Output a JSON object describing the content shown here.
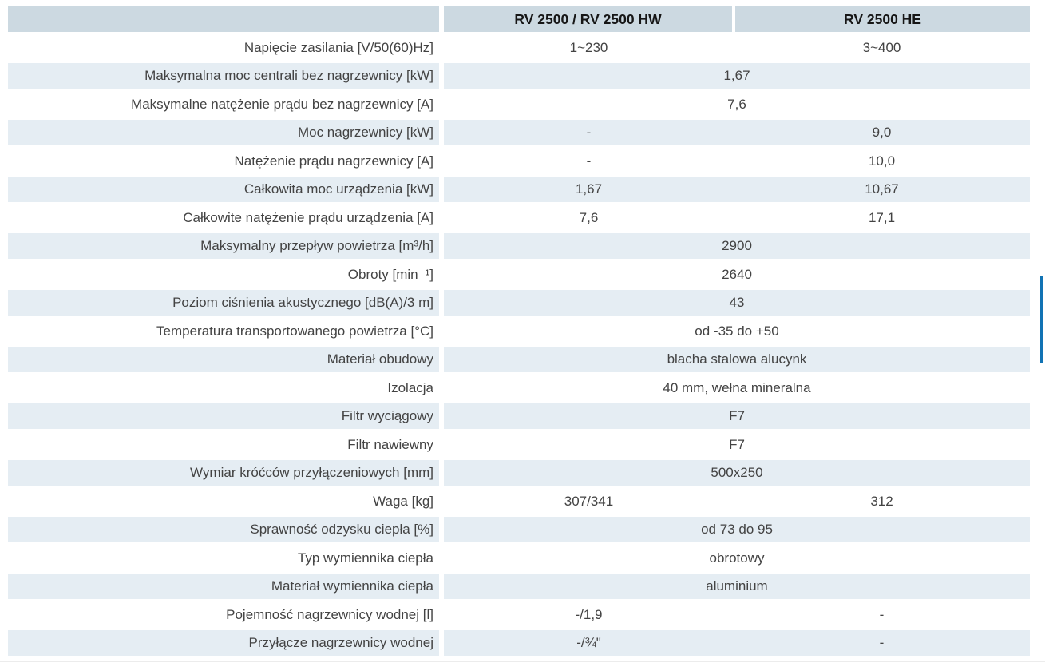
{
  "table": {
    "columns": [
      "RV 2500 / RV 2500 HW",
      "RV 2500 HE"
    ],
    "rows": [
      {
        "label": "Napięcie zasilania [V/50(60)Hz]",
        "v1": "1~230",
        "v2": "3~400"
      },
      {
        "label": "Maksymalna moc centrali bez nagrzewnicy [kW]",
        "merged": "1,67"
      },
      {
        "label": "Maksymalne natężenie prądu bez nagrzewnicy [A]",
        "merged": "7,6"
      },
      {
        "label": "Moc nagrzewnicy [kW]",
        "v1": "-",
        "v2": "9,0"
      },
      {
        "label": "Natężenie prądu nagrzewnicy [A]",
        "v1": "-",
        "v2": "10,0"
      },
      {
        "label": "Całkowita moc urządzenia [kW]",
        "v1": "1,67",
        "v2": "10,67"
      },
      {
        "label": "Całkowite natężenie prądu urządzenia [A]",
        "v1": "7,6",
        "v2": "17,1"
      },
      {
        "label": "Maksymalny przepływ powietrza [m³/h]",
        "merged": "2900"
      },
      {
        "label": "Obroty [min⁻¹]",
        "merged": "2640"
      },
      {
        "label": "Poziom ciśnienia akustycznego [dB(A)/3 m]",
        "merged": "43"
      },
      {
        "label": "Temperatura transportowanego powietrza [°C]",
        "merged": "od -35 do +50"
      },
      {
        "label": "Materiał obudowy",
        "merged": "blacha stalowa alucynk"
      },
      {
        "label": "Izolacja",
        "merged": "40 mm, wełna mineralna"
      },
      {
        "label": "Filtr wyciągowy",
        "merged": "F7"
      },
      {
        "label": "Filtr nawiewny",
        "merged": "F7"
      },
      {
        "label": "Wymiar króćców przyłączeniowych [mm]",
        "merged": "500x250"
      },
      {
        "label": "Waga [kg]",
        "v1": "307/341",
        "v2": "312"
      },
      {
        "label": "Sprawność odzysku ciepła [%]",
        "merged": "od 73 do 95"
      },
      {
        "label": "Typ wymiennika ciepła",
        "merged": "obrotowy"
      },
      {
        "label": "Materiał wymiennika ciepła",
        "merged": "aluminium"
      },
      {
        "label": "Pojemność nagrzewnicy wodnej [l]",
        "v1": "-/1,9",
        "v2": "-"
      },
      {
        "label": "Przyłącze nagrzewnicy wodnej",
        "v1": "-/¾\"",
        "v2": "-"
      }
    ]
  },
  "colors": {
    "header_bg": "#ccd9e1",
    "row_shaded_bg": "#e5edf3",
    "label_text": "#434343",
    "header_text": "#161616",
    "edge_accent_bar": "#1173b4"
  }
}
